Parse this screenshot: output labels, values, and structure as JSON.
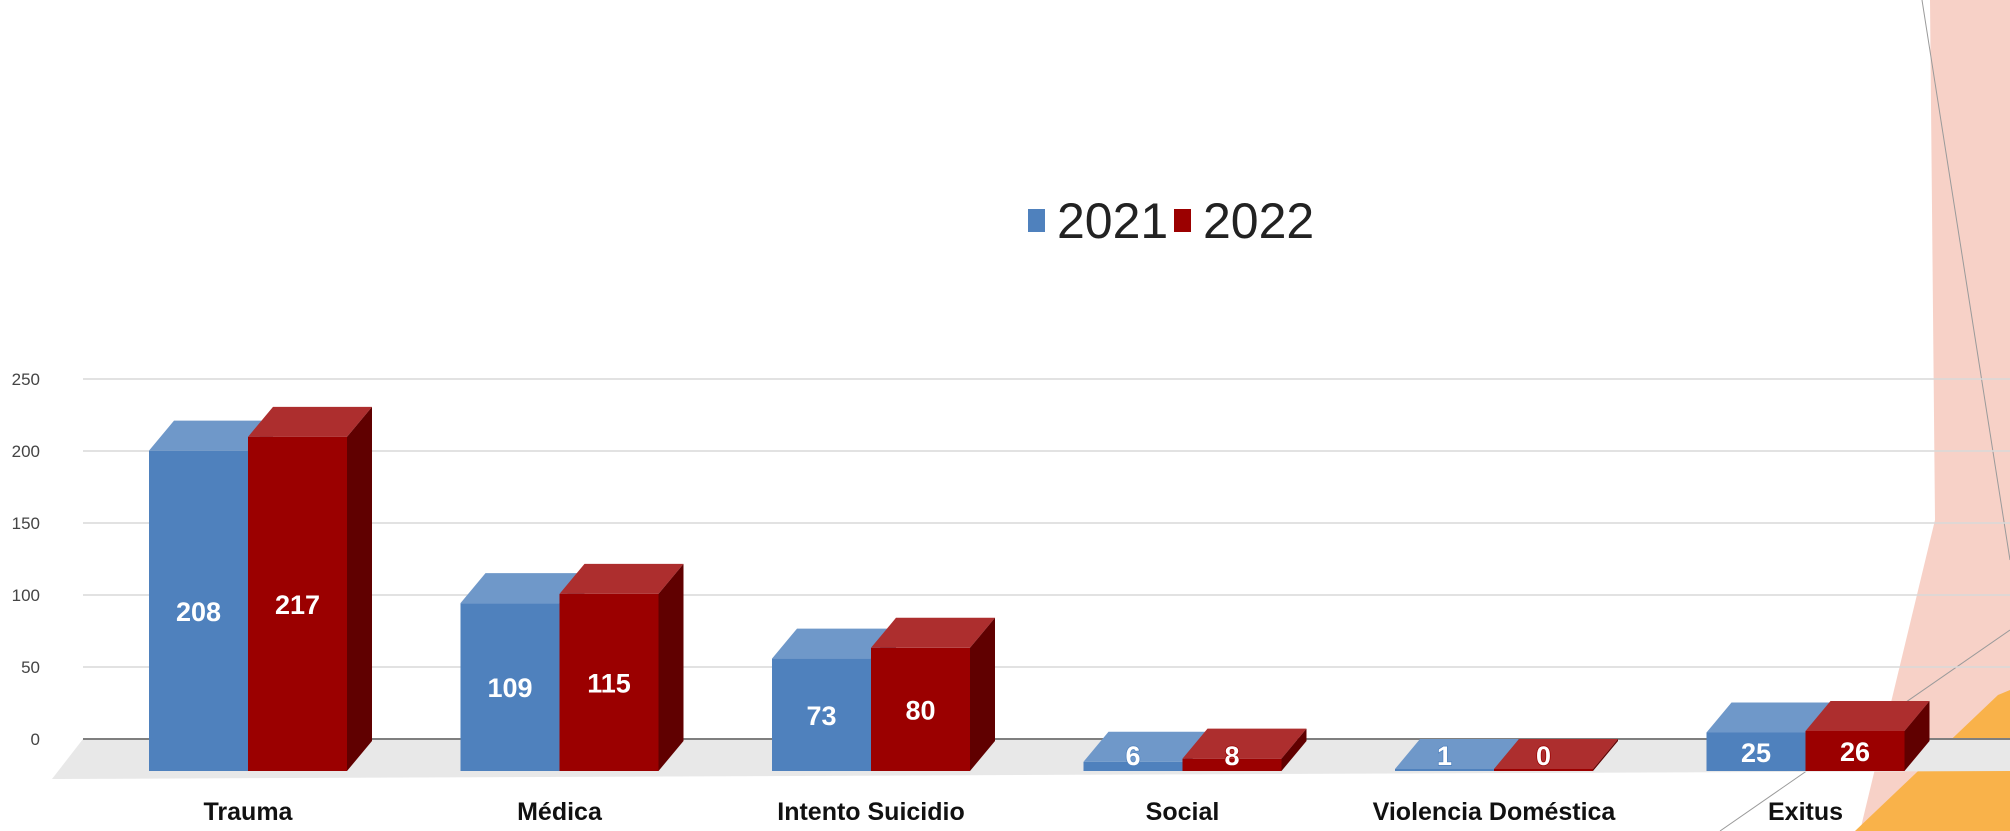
{
  "chart_data": {
    "type": "bar",
    "style": "3d-clustered-column",
    "categories": [
      "Trauma",
      "Médica",
      "Intento Suicidio",
      "Social",
      "Violencia Doméstica",
      "Exitus"
    ],
    "series": [
      {
        "name": "2021",
        "values": [
          208,
          109,
          73,
          6,
          1,
          25
        ],
        "color": "#4f81bd"
      },
      {
        "name": "2022",
        "values": [
          217,
          115,
          80,
          8,
          0,
          26
        ],
        "color": "#9b0000"
      }
    ],
    "yticks": [
      0,
      50,
      100,
      150,
      200,
      250
    ],
    "ylim": [
      0,
      250
    ],
    "grid": true,
    "legend_position": "top-center",
    "background_accent_colors": [
      "#f4c2b4",
      "#f9b24a"
    ]
  }
}
